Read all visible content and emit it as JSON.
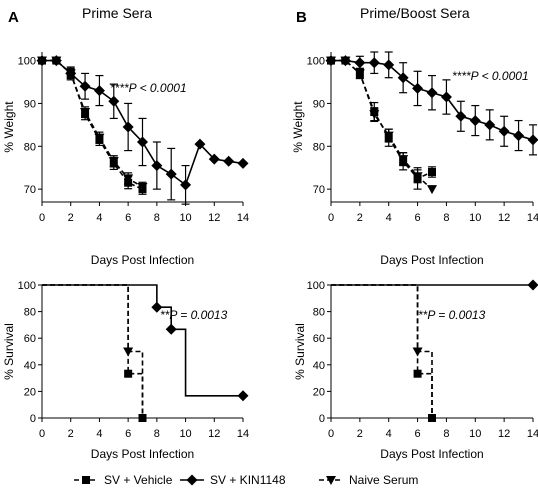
{
  "figure": {
    "legend": [
      {
        "name": "SV + Vehicle",
        "marker": "square",
        "dash": true
      },
      {
        "name": "SV + KIN1148",
        "marker": "diamond",
        "dash": false
      },
      {
        "name": "Naive Serum",
        "marker": "triangle-down",
        "dash": true
      }
    ]
  },
  "chart_data": [
    {
      "type": "line",
      "panel": "A",
      "title": "Prime Sera",
      "xlabel": "Days Post Infection",
      "ylabel": "% Weight",
      "xlim": [
        0,
        14
      ],
      "ylim": [
        67,
        102
      ],
      "xticks": [
        0,
        2,
        4,
        6,
        8,
        10,
        12,
        14
      ],
      "yticks": [
        70,
        80,
        90,
        100
      ],
      "annotation": "****P < 0.0001",
      "series": [
        {
          "name": "SV + Vehicle",
          "marker": "square",
          "dash": true,
          "x": [
            0,
            1,
            2,
            3,
            4,
            5,
            6,
            7
          ],
          "y": [
            100,
            100,
            97,
            87.5,
            81.5,
            76,
            71.5,
            70
          ],
          "err": [
            0,
            0.5,
            1.2,
            1.3,
            1.3,
            1.4,
            1.4,
            1.2
          ]
        },
        {
          "name": "SV + KIN1148",
          "marker": "diamond",
          "dash": false,
          "x": [
            0,
            1,
            2,
            3,
            4,
            5,
            6,
            7,
            8,
            9,
            10,
            11,
            12,
            13,
            14
          ],
          "y": [
            100,
            100,
            97,
            94,
            93,
            90.5,
            84.5,
            81,
            75.5,
            73.5,
            71,
            80.5,
            77,
            76.5,
            76
          ],
          "err": [
            0,
            0.5,
            1.5,
            3,
            3.5,
            4,
            5.5,
            5.5,
            5.5,
            6,
            4.5,
            0,
            0,
            0,
            0
          ]
        },
        {
          "name": "Naive Serum",
          "marker": "triangle-down",
          "dash": true,
          "x": [
            0,
            1,
            2,
            3,
            4,
            5,
            6,
            7
          ],
          "y": [
            100,
            100,
            97,
            88,
            82,
            76.5,
            72.5,
            70.5
          ],
          "err": [
            0,
            0.5,
            1,
            1.2,
            1.3,
            1.3,
            1.3,
            1.1
          ]
        }
      ]
    },
    {
      "type": "line",
      "panel": "B",
      "title": "Prime/Boost Sera",
      "xlabel": "Days Post Infection",
      "ylabel": "% Weight",
      "xlim": [
        0,
        14
      ],
      "ylim": [
        67,
        102
      ],
      "xticks": [
        0,
        2,
        4,
        6,
        8,
        10,
        12,
        14
      ],
      "yticks": [
        70,
        80,
        90,
        100
      ],
      "annotation": "****P < 0.0001",
      "series": [
        {
          "name": "SV + Vehicle",
          "marker": "square",
          "dash": true,
          "x": [
            0,
            1,
            2,
            3,
            4,
            5,
            6,
            7
          ],
          "y": [
            100,
            100,
            97,
            88,
            82,
            76.5,
            72.5,
            74
          ],
          "err": [
            0,
            0.5,
            1.2,
            2.2,
            2,
            2,
            2.5,
            1.2
          ]
        },
        {
          "name": "SV + KIN1148",
          "marker": "diamond",
          "dash": false,
          "x": [
            0,
            1,
            2,
            3,
            4,
            5,
            6,
            7,
            8,
            9,
            10,
            11,
            12,
            13,
            14
          ],
          "y": [
            100,
            100,
            99.5,
            99.5,
            99,
            96,
            93.5,
            92.5,
            91.5,
            87,
            86,
            85,
            83.5,
            82.5,
            81.5
          ],
          "err": [
            0,
            0.5,
            1.5,
            2.5,
            3,
            3.5,
            4,
            4,
            4,
            3.5,
            3.5,
            3.5,
            3.5,
            3.5,
            3.5
          ]
        },
        {
          "name": "Naive Serum",
          "marker": "triangle-down",
          "dash": true,
          "x": [
            0,
            1,
            2,
            3,
            4,
            5,
            6,
            7
          ],
          "y": [
            100,
            100,
            97,
            87.5,
            82.5,
            77,
            73,
            70
          ],
          "err": [
            0,
            0.5,
            1,
            1.5,
            1.5,
            1.5,
            1.5,
            0
          ]
        }
      ]
    },
    {
      "type": "line",
      "panel": "A-survival",
      "step": true,
      "xlabel": "Days Post Infection",
      "ylabel": "% Survival",
      "xlim": [
        0,
        14
      ],
      "ylim": [
        0,
        100
      ],
      "xticks": [
        0,
        2,
        4,
        6,
        8,
        10,
        12,
        14
      ],
      "yticks": [
        0,
        20,
        40,
        60,
        80,
        100
      ],
      "annotation": "**P = 0.0013",
      "series": [
        {
          "name": "SV + Vehicle",
          "marker": "square",
          "dash": true,
          "x": [
            0,
            6,
            7
          ],
          "y": [
            100,
            33.3,
            0
          ],
          "marker_x": [
            6,
            7
          ],
          "marker_y": [
            33.3,
            0
          ]
        },
        {
          "name": "SV + KIN1148",
          "marker": "diamond",
          "dash": false,
          "x": [
            0,
            8,
            9,
            10,
            14
          ],
          "y": [
            100,
            83.3,
            66.7,
            16.7,
            16.7
          ],
          "marker_x": [
            8,
            9,
            14
          ],
          "marker_y": [
            83.3,
            66.7,
            16.7
          ]
        },
        {
          "name": "Naive Serum",
          "marker": "triangle-down",
          "dash": true,
          "x": [
            0,
            6,
            7
          ],
          "y": [
            100,
            50,
            0
          ],
          "marker_x": [
            6
          ],
          "marker_y": [
            50
          ]
        }
      ]
    },
    {
      "type": "line",
      "panel": "B-survival",
      "step": true,
      "xlabel": "Days Post Infection",
      "ylabel": "% Survival",
      "xlim": [
        0,
        14
      ],
      "ylim": [
        0,
        100
      ],
      "xticks": [
        0,
        2,
        4,
        6,
        8,
        10,
        12,
        14
      ],
      "yticks": [
        0,
        20,
        40,
        60,
        80,
        100
      ],
      "annotation": "**P = 0.0013",
      "series": [
        {
          "name": "SV + Vehicle",
          "marker": "square",
          "dash": true,
          "x": [
            0,
            6,
            7
          ],
          "y": [
            100,
            33.3,
            0
          ],
          "marker_x": [
            6,
            7
          ],
          "marker_y": [
            33.3,
            0
          ]
        },
        {
          "name": "SV + KIN1148",
          "marker": "diamond",
          "dash": false,
          "x": [
            0,
            14
          ],
          "y": [
            100,
            100
          ],
          "marker_x": [
            14
          ],
          "marker_y": [
            100
          ]
        },
        {
          "name": "Naive Serum",
          "marker": "triangle-down",
          "dash": true,
          "x": [
            0,
            6,
            7
          ],
          "y": [
            100,
            50,
            0
          ],
          "marker_x": [
            6
          ],
          "marker_y": [
            50
          ]
        }
      ]
    }
  ]
}
